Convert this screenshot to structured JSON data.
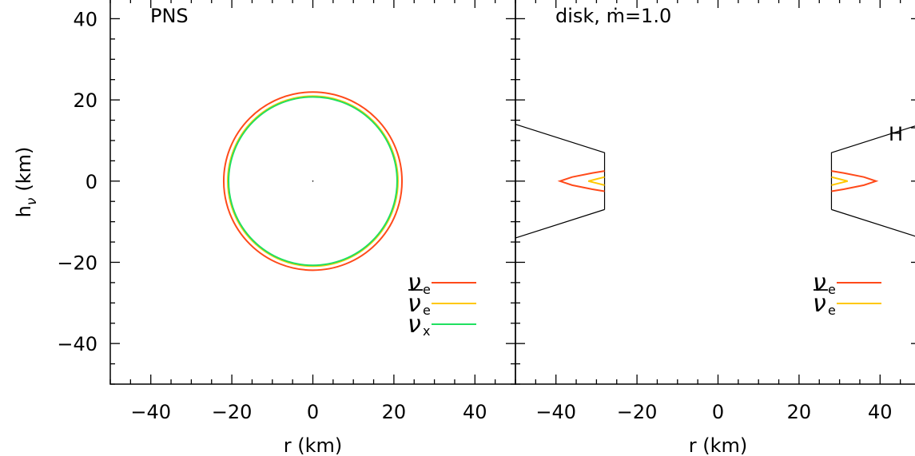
{
  "chart_data": [
    {
      "type": "line",
      "panel_label": "PNS",
      "xlabel": "r (km)",
      "ylabel": "h",
      "ylabel_subscript": "ν",
      "ylabel_unit": "(km)",
      "xlim": [
        -50,
        50
      ],
      "ylim": [
        -50,
        45
      ],
      "x_ticks": [
        -40,
        -20,
        0,
        20,
        40
      ],
      "y_ticks": [
        40,
        20,
        0,
        -20,
        -40
      ],
      "grid": false,
      "legend_position": "bottom-right",
      "series": [
        {
          "name": "νe",
          "symbol": "ν",
          "subscript": "e",
          "bar": false,
          "color": "#ff4a1a",
          "shape": "circle",
          "radius": 22
        },
        {
          "name": "ν̄e",
          "symbol": "ν",
          "subscript": "e",
          "bar": true,
          "color": "#ffc800",
          "shape": "circle",
          "radius": 21
        },
        {
          "name": "νx",
          "symbol": "ν",
          "subscript": "x",
          "bar": false,
          "color": "#20e060",
          "shape": "circle",
          "radius": 20.8
        }
      ]
    },
    {
      "type": "line",
      "panel_label": "disk,  ṁ=1.0",
      "xlabel": "r (km)",
      "xlim": [
        -50,
        50
      ],
      "ylim": [
        -50,
        45
      ],
      "x_ticks": [
        -40,
        -20,
        0,
        20,
        40
      ],
      "y_ticks": [
        40,
        20,
        0,
        -20,
        -40
      ],
      "grid": false,
      "legend_position": "bottom-right",
      "annotation": "H",
      "disk_boundary": {
        "color": "#000000",
        "right": {
          "x": [
            28,
            28,
            50,
            50,
            28
          ],
          "y": [
            -7,
            7,
            14,
            -14,
            -7
          ]
        },
        "left": {
          "x": [
            -28,
            -28,
            -50,
            -50,
            -28
          ],
          "y": [
            -7,
            7,
            14,
            -14,
            -7
          ]
        }
      },
      "series": [
        {
          "name": "νe",
          "symbol": "ν",
          "subscript": "e",
          "bar": false,
          "color": "#ff4a1a",
          "contours": [
            {
              "x": [
                28,
                31,
                36,
                39,
                36,
                31,
                28
              ],
              "y": [
                2.5,
                2,
                1,
                0,
                -1,
                -2,
                -2.5
              ]
            },
            {
              "x": [
                -28,
                -31,
                -36,
                -39,
                -36,
                -31,
                -28
              ],
              "y": [
                2.5,
                2,
                1,
                0,
                -1,
                -2,
                -2.5
              ]
            }
          ]
        },
        {
          "name": "ν̄e",
          "symbol": "ν",
          "subscript": "e",
          "bar": true,
          "color": "#ffc800",
          "contours": [
            {
              "x": [
                28,
                30,
                32,
                30,
                28
              ],
              "y": [
                1,
                0.5,
                0,
                -0.5,
                -1
              ]
            },
            {
              "x": [
                -28,
                -30,
                -32,
                -30,
                -28
              ],
              "y": [
                1,
                0.5,
                0,
                -0.5,
                -1
              ]
            }
          ]
        }
      ]
    }
  ]
}
